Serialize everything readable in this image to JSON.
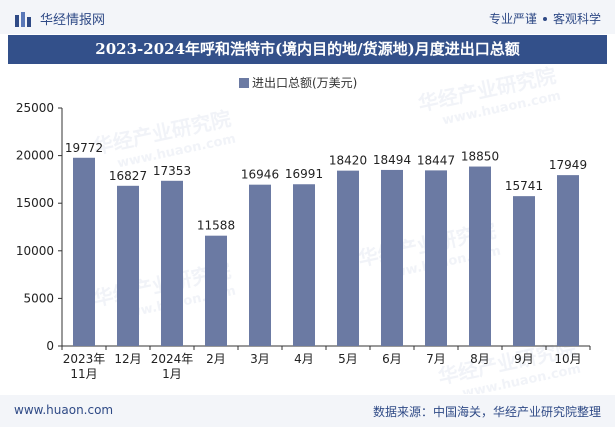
{
  "header": {
    "brand_name": "华经情报网",
    "slogan_left": "专业严谨",
    "slogan_right": "客观科学",
    "logo_icon": "bar-logo-icon"
  },
  "footer": {
    "website": "www.huaon.com",
    "source": "数据来源：中国海关，华经产业研究院整理"
  },
  "watermark": {
    "text_cn": "华经产业研究院",
    "text_url": "www.huaon.com"
  },
  "colors": {
    "bar": "#6b7aa3",
    "title_bg": "#33508a",
    "brand": "#2f4a86"
  },
  "chart_data": {
    "type": "bar",
    "title": "2023-2024年呼和浩特市(境内目的地/货源地)月度进出口总额",
    "legend_position": "top-center",
    "grid": false,
    "ylim": [
      0,
      25000
    ],
    "yticks": [
      0,
      5000,
      10000,
      15000,
      20000,
      25000
    ],
    "categories": [
      [
        "2023年",
        "11月"
      ],
      [
        "12月"
      ],
      [
        "2024年",
        "1月"
      ],
      [
        "2月"
      ],
      [
        "3月"
      ],
      [
        "4月"
      ],
      [
        "5月"
      ],
      [
        "6月"
      ],
      [
        "7月"
      ],
      [
        "8月"
      ],
      [
        "9月"
      ],
      [
        "10月"
      ]
    ],
    "series": [
      {
        "name": "进出口总额(万美元)",
        "values": [
          19772,
          16827,
          17353,
          11588,
          16946,
          16991,
          18420,
          18494,
          18447,
          18850,
          15741,
          17949
        ]
      }
    ]
  }
}
